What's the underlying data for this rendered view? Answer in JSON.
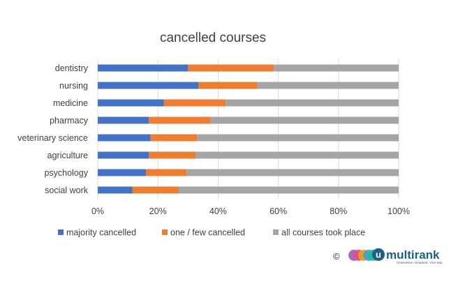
{
  "chart_data": {
    "type": "bar",
    "stacked": true,
    "orientation": "horizontal",
    "title": "cancelled courses",
    "categories": [
      "dentistry",
      "nursing",
      "medicine",
      "pharmacy",
      "veterinary science",
      "agriculture",
      "psychology",
      "social work"
    ],
    "series": [
      {
        "name": "majority cancelled",
        "color": "#4472c4",
        "values": [
          30,
          33.5,
          22,
          17,
          17.5,
          17,
          16,
          11.5
        ]
      },
      {
        "name": "one / few cancelled",
        "color": "#ed7d31",
        "values": [
          28.5,
          19.5,
          20.5,
          20.5,
          15.5,
          15.5,
          13.5,
          15.5
        ]
      },
      {
        "name": "all courses took place",
        "color": "#a5a5a5",
        "values": [
          41.5,
          47,
          57.5,
          62.5,
          67,
          67.5,
          70.5,
          73
        ]
      }
    ],
    "xlim": [
      0,
      100
    ],
    "xticks": [
      "0%",
      "20%",
      "40%",
      "60%",
      "80%",
      "100%"
    ],
    "grid": true,
    "legend_position": "bottom"
  },
  "logo": {
    "copyright_symbol": "©",
    "badge_letter": "u",
    "name": "multirank",
    "tagline": "Universities compared. Your way.",
    "circle_colors": [
      "#9b59b6",
      "#e74c8b",
      "#f39c12",
      "#3aa0d8",
      "#1abc9c"
    ]
  }
}
